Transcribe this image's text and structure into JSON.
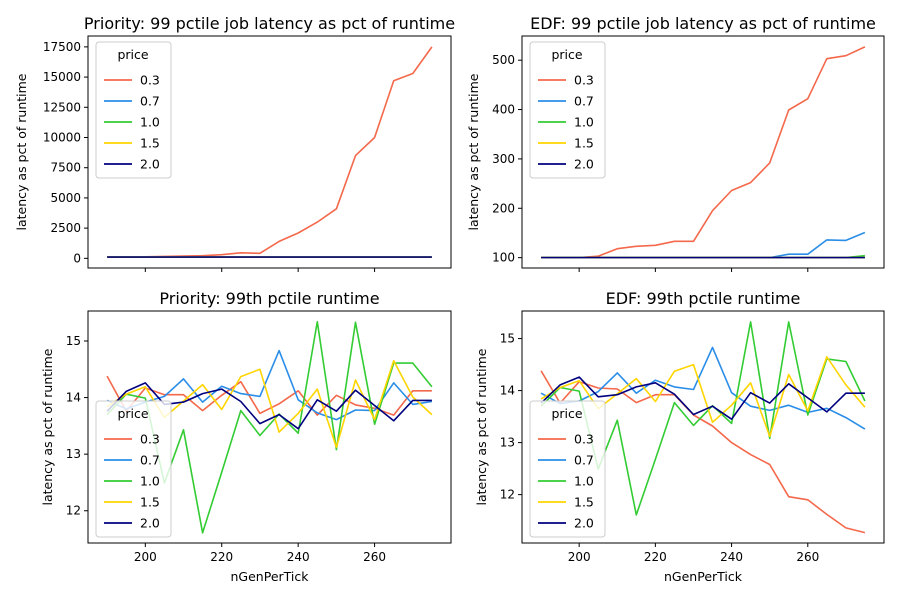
{
  "chart_data": [
    {
      "type": "line",
      "title": "Priority: 99 pctile job latency as pct of runtime",
      "xlabel": "",
      "ylabel": "latency as pct of runtime",
      "xlim": [
        185,
        280
      ],
      "ylim": [
        -800,
        18400
      ],
      "xticks": [
        200,
        220,
        240,
        260
      ],
      "xticklabels": [
        "",
        "",
        "",
        ""
      ],
      "yticks": [
        0,
        2500,
        5000,
        7500,
        10000,
        12500,
        15000,
        17500
      ],
      "yticklabels": [
        "0",
        "2500",
        "5000",
        "7500",
        "10000",
        "12500",
        "15000",
        "17500"
      ],
      "legend": {
        "title": "price",
        "position": "upper left"
      },
      "x": [
        190,
        195,
        200,
        205,
        210,
        215,
        220,
        225,
        230,
        235,
        240,
        245,
        250,
        255,
        260,
        265,
        270,
        275
      ],
      "series": [
        {
          "name": "0.3",
          "color": "#f4684b",
          "values": [
            100,
            110,
            130,
            160,
            190,
            220,
            300,
            460,
            420,
            1400,
            2100,
            3000,
            4100,
            8500,
            10000,
            14700,
            15300,
            17500
          ]
        },
        {
          "name": "0.7",
          "color": "#2a8ee8",
          "values": [
            100,
            100,
            100,
            100,
            100,
            100,
            100,
            100,
            100,
            100,
            100,
            100,
            100,
            100,
            100,
            100,
            100,
            100
          ]
        },
        {
          "name": "1.0",
          "color": "#33cc33",
          "values": [
            100,
            100,
            100,
            100,
            100,
            100,
            100,
            100,
            100,
            100,
            100,
            100,
            100,
            100,
            100,
            100,
            100,
            100
          ]
        },
        {
          "name": "1.5",
          "color": "#ffd500",
          "values": [
            100,
            100,
            100,
            100,
            100,
            100,
            100,
            100,
            100,
            100,
            100,
            100,
            100,
            100,
            100,
            100,
            100,
            100
          ]
        },
        {
          "name": "2.0",
          "color": "#00007f",
          "values": [
            100,
            100,
            100,
            100,
            100,
            100,
            100,
            100,
            100,
            100,
            100,
            100,
            100,
            100,
            100,
            100,
            100,
            100
          ]
        }
      ]
    },
    {
      "type": "line",
      "title": "EDF: 99 pctile job latency as pct of runtime",
      "xlabel": "",
      "ylabel": "latency as pct of runtime",
      "xlim": [
        185,
        280
      ],
      "ylim": [
        79,
        549
      ],
      "xticks": [
        200,
        220,
        240,
        260
      ],
      "xticklabels": [
        "",
        "",
        "",
        ""
      ],
      "yticks": [
        100,
        200,
        300,
        400,
        500
      ],
      "yticklabels": [
        "100",
        "200",
        "300",
        "400",
        "500"
      ],
      "legend": {
        "title": "price",
        "position": "upper left"
      },
      "x": [
        190,
        195,
        200,
        205,
        210,
        215,
        220,
        225,
        230,
        235,
        240,
        245,
        250,
        255,
        260,
        265,
        270,
        275
      ],
      "series": [
        {
          "name": "0.3",
          "color": "#f4684b",
          "values": [
            100,
            100,
            100,
            103,
            118,
            123,
            125,
            133,
            133,
            195,
            236,
            252,
            292,
            399,
            422,
            503,
            509,
            527
          ]
        },
        {
          "name": "0.7",
          "color": "#2a8ee8",
          "values": [
            100,
            100,
            100,
            100,
            100,
            100,
            100,
            100,
            100,
            100,
            100,
            100,
            100,
            107,
            107,
            136,
            135,
            151
          ]
        },
        {
          "name": "1.0",
          "color": "#33cc33",
          "values": [
            100,
            100,
            100,
            100,
            100,
            100,
            100,
            100,
            100,
            100,
            100,
            100,
            100,
            100,
            100,
            100,
            100,
            104
          ]
        },
        {
          "name": "1.5",
          "color": "#ffd500",
          "values": [
            100,
            100,
            100,
            100,
            100,
            100,
            100,
            100,
            100,
            100,
            100,
            100,
            100,
            100,
            100,
            100,
            100,
            100
          ]
        },
        {
          "name": "2.0",
          "color": "#00007f",
          "values": [
            100,
            100,
            100,
            100,
            100,
            100,
            100,
            100,
            100,
            100,
            100,
            100,
            100,
            100,
            100,
            100,
            100,
            100
          ]
        }
      ]
    },
    {
      "type": "line",
      "title": "Priority: 99th pctile runtime",
      "xlabel": "nGenPerTick",
      "ylabel": "latency as pct of runtime",
      "xlim": [
        185,
        280
      ],
      "ylim": [
        11.43,
        15.53
      ],
      "xticks": [
        200,
        220,
        240,
        260
      ],
      "xticklabels": [
        "200",
        "220",
        "240",
        "260"
      ],
      "yticks": [
        12,
        13,
        14,
        15
      ],
      "yticklabels": [
        "12",
        "13",
        "14",
        "15"
      ],
      "legend": {
        "title": "price",
        "position": "lower left"
      },
      "x": [
        190,
        195,
        200,
        205,
        210,
        215,
        220,
        225,
        230,
        235,
        240,
        245,
        250,
        255,
        260,
        265,
        270,
        275
      ],
      "series": [
        {
          "name": "0.3",
          "color": "#f4684b",
          "values": [
            14.38,
            13.76,
            14.17,
            14.05,
            14.05,
            13.77,
            14.04,
            14.28,
            13.72,
            13.89,
            14.12,
            13.69,
            14.04,
            13.87,
            13.81,
            13.69,
            14.12,
            14.12
          ]
        },
        {
          "name": "0.7",
          "color": "#2a8ee8",
          "values": [
            13.95,
            13.8,
            13.92,
            14.02,
            14.33,
            13.92,
            14.2,
            14.07,
            14.02,
            14.83,
            13.96,
            13.73,
            13.61,
            13.78,
            13.77,
            14.26,
            13.88,
            13.93
          ]
        },
        {
          "name": "1.0",
          "color": "#33cc33",
          "values": [
            13.7,
            14.06,
            13.99,
            12.49,
            13.43,
            11.61,
            12.68,
            13.77,
            13.33,
            13.71,
            13.37,
            15.34,
            13.08,
            15.33,
            13.53,
            14.61,
            14.61,
            14.19
          ]
        },
        {
          "name": "1.5",
          "color": "#ffd500",
          "values": [
            13.84,
            14.06,
            14.19,
            13.65,
            13.94,
            14.23,
            13.79,
            14.37,
            14.5,
            13.39,
            13.72,
            14.15,
            13.12,
            14.31,
            13.61,
            14.65,
            14.01,
            13.7
          ]
        },
        {
          "name": "2.0",
          "color": "#00007f",
          "values": [
            13.76,
            14.11,
            14.26,
            13.88,
            13.92,
            14.07,
            14.15,
            13.93,
            13.54,
            13.7,
            13.45,
            13.96,
            13.76,
            14.13,
            13.86,
            13.59,
            13.95,
            13.95
          ]
        }
      ]
    },
    {
      "type": "line",
      "title": "EDF: 99th pctile runtime",
      "xlabel": "nGenPerTick",
      "ylabel": "latency as pct of runtime",
      "xlim": [
        185,
        280
      ],
      "ylim": [
        11.07,
        15.53
      ],
      "xticks": [
        200,
        220,
        240,
        260
      ],
      "xticklabels": [
        "200",
        "220",
        "240",
        "260"
      ],
      "yticks": [
        12,
        13,
        14,
        15
      ],
      "yticklabels": [
        "12",
        "13",
        "14",
        "15"
      ],
      "legend": {
        "title": "price",
        "position": "lower left"
      },
      "x": [
        190,
        195,
        200,
        205,
        210,
        215,
        220,
        225,
        230,
        235,
        240,
        245,
        250,
        255,
        260,
        265,
        270,
        275
      ],
      "series": [
        {
          "name": "0.3",
          "color": "#f4684b",
          "values": [
            14.38,
            13.76,
            14.17,
            14.05,
            14.03,
            13.77,
            13.92,
            13.92,
            13.53,
            13.32,
            13.0,
            12.77,
            12.58,
            11.96,
            11.9,
            11.62,
            11.36,
            11.27
          ]
        },
        {
          "name": "0.7",
          "color": "#2a8ee8",
          "values": [
            13.95,
            13.75,
            13.8,
            13.98,
            14.34,
            13.95,
            14.2,
            14.07,
            14.02,
            14.83,
            13.96,
            13.7,
            13.62,
            13.72,
            13.58,
            13.66,
            13.48,
            13.26
          ]
        },
        {
          "name": "1.0",
          "color": "#33cc33",
          "values": [
            13.7,
            14.06,
            13.99,
            12.49,
            13.43,
            11.61,
            12.68,
            13.77,
            13.33,
            13.71,
            13.37,
            15.32,
            13.08,
            15.32,
            13.53,
            14.61,
            14.56,
            13.8
          ]
        },
        {
          "name": "1.5",
          "color": "#ffd500",
          "values": [
            13.84,
            14.06,
            14.19,
            13.65,
            13.94,
            14.23,
            13.79,
            14.37,
            14.5,
            13.39,
            13.72,
            14.15,
            13.12,
            14.31,
            13.61,
            14.65,
            14.11,
            13.68
          ]
        },
        {
          "name": "2.0",
          "color": "#00007f",
          "values": [
            13.76,
            14.11,
            14.26,
            13.88,
            13.92,
            14.07,
            14.15,
            13.93,
            13.54,
            13.7,
            13.45,
            13.96,
            13.76,
            14.13,
            13.86,
            13.59,
            13.95,
            13.95
          ]
        }
      ]
    }
  ]
}
